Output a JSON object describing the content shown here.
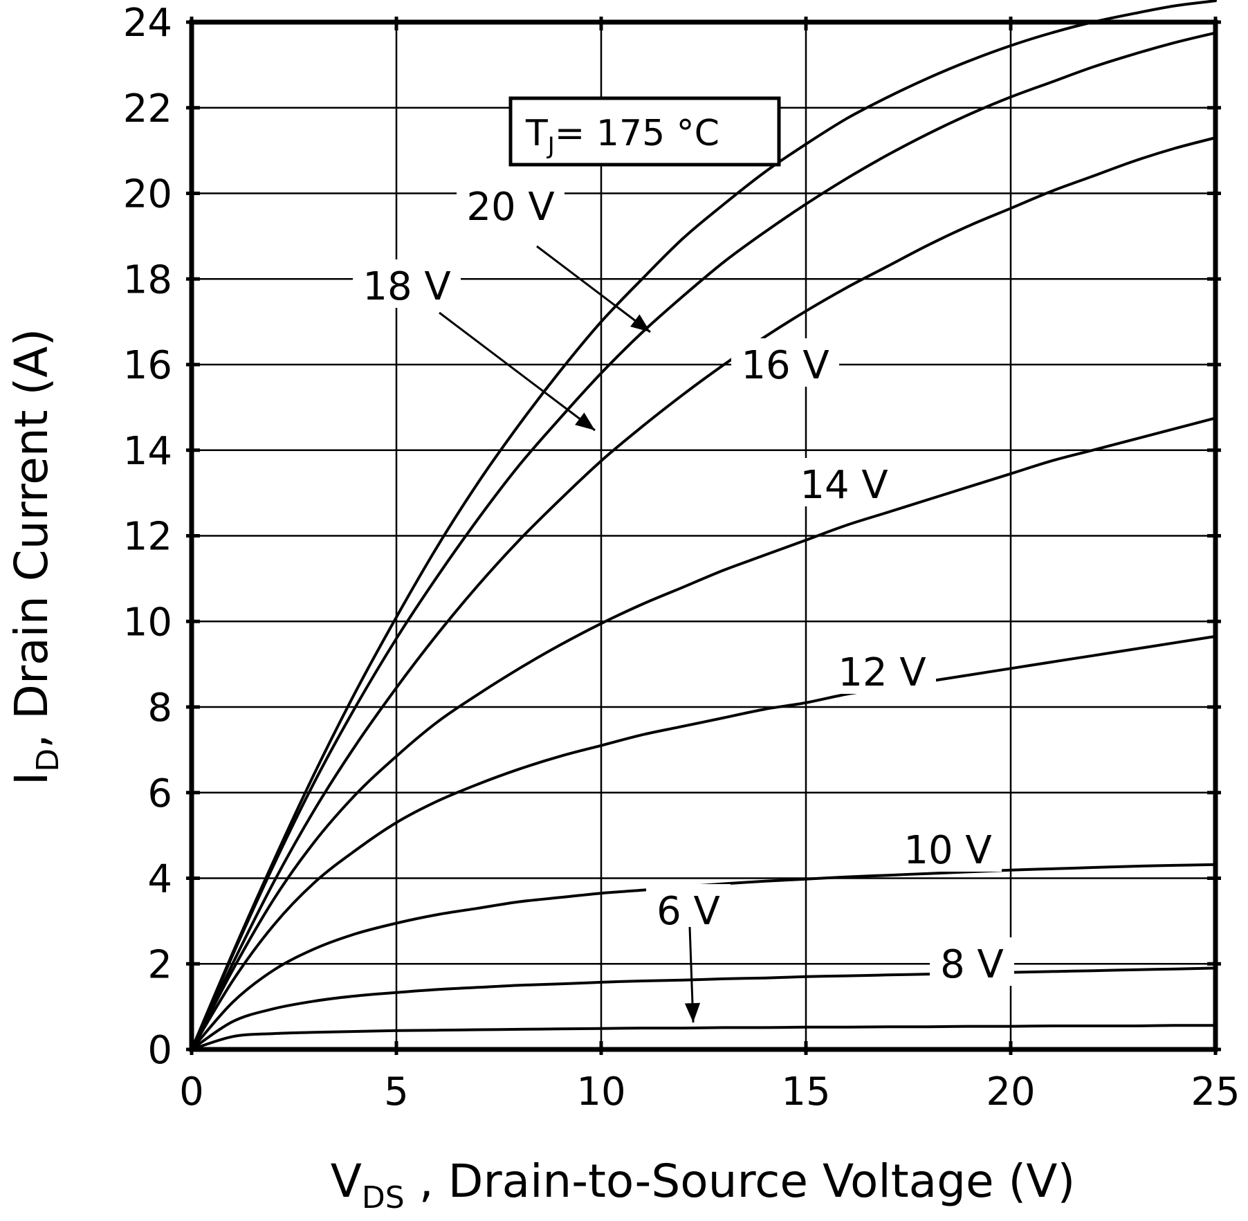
{
  "chart_data": {
    "type": "line",
    "title": "",
    "xlabel": {
      "main": "V",
      "sub": "DS",
      "rest": " , Drain-to-Source Voltage (V)"
    },
    "ylabel": {
      "main": "I",
      "sub": "D",
      "rest": ", Drain Current (A)"
    },
    "xlim": [
      0,
      25
    ],
    "ylim": [
      0,
      24
    ],
    "xticks": [
      0,
      5,
      10,
      15,
      20,
      25
    ],
    "yticks": [
      0,
      2,
      4,
      6,
      8,
      10,
      12,
      14,
      16,
      18,
      20,
      22,
      24
    ],
    "grid": true,
    "annotation": {
      "main": "T",
      "sub": "J",
      "rest": "= 175 °C"
    },
    "x": [
      0,
      1,
      2,
      3,
      4,
      5,
      6,
      7,
      8,
      9,
      10,
      11,
      12,
      13,
      14,
      15,
      16,
      17,
      18,
      19,
      20,
      21,
      22,
      23,
      24,
      25
    ],
    "series": [
      {
        "name": "20 V",
        "values": [
          0,
          2.25,
          4.4,
          6.45,
          8.35,
          10.1,
          11.75,
          13.25,
          14.6,
          15.85,
          17.0,
          18.0,
          18.95,
          19.75,
          20.5,
          21.15,
          21.75,
          22.25,
          22.7,
          23.1,
          23.45,
          23.75,
          24.0,
          24.2,
          24.38,
          24.5
        ]
      },
      {
        "name": "18 V",
        "values": [
          0,
          2.2,
          4.3,
          6.25,
          8.0,
          9.6,
          11.05,
          12.4,
          13.65,
          14.75,
          15.8,
          16.75,
          17.6,
          18.4,
          19.1,
          19.75,
          20.35,
          20.9,
          21.4,
          21.85,
          22.25,
          22.6,
          22.95,
          23.25,
          23.52,
          23.75
        ]
      },
      {
        "name": "16 V",
        "values": [
          0,
          2.0,
          3.9,
          5.6,
          7.1,
          8.45,
          9.7,
          10.85,
          11.9,
          12.85,
          13.75,
          14.55,
          15.3,
          16.0,
          16.65,
          17.25,
          17.8,
          18.3,
          18.8,
          19.25,
          19.65,
          20.05,
          20.4,
          20.75,
          21.05,
          21.3
        ]
      },
      {
        "name": "14 V",
        "values": [
          0,
          1.85,
          3.5,
          4.85,
          5.95,
          6.85,
          7.65,
          8.3,
          8.9,
          9.45,
          9.95,
          10.4,
          10.8,
          11.2,
          11.55,
          11.9,
          12.25,
          12.55,
          12.85,
          13.15,
          13.45,
          13.75,
          14.0,
          14.25,
          14.5,
          14.75
        ]
      },
      {
        "name": "12 V",
        "values": [
          0,
          1.6,
          2.9,
          3.9,
          4.65,
          5.3,
          5.8,
          6.2,
          6.55,
          6.85,
          7.1,
          7.35,
          7.55,
          7.75,
          7.95,
          8.1,
          8.3,
          8.45,
          8.6,
          8.75,
          8.9,
          9.05,
          9.2,
          9.35,
          9.5,
          9.65
        ]
      },
      {
        "name": "10 V",
        "values": [
          0,
          1.1,
          1.85,
          2.35,
          2.7,
          2.95,
          3.15,
          3.3,
          3.45,
          3.55,
          3.65,
          3.72,
          3.8,
          3.87,
          3.93,
          3.98,
          4.03,
          4.07,
          4.11,
          4.15,
          4.19,
          4.22,
          4.25,
          4.28,
          4.3,
          4.32
        ]
      },
      {
        "name": "8 V",
        "values": [
          0,
          0.65,
          0.95,
          1.13,
          1.25,
          1.33,
          1.4,
          1.45,
          1.5,
          1.53,
          1.57,
          1.6,
          1.62,
          1.65,
          1.67,
          1.7,
          1.72,
          1.74,
          1.76,
          1.78,
          1.8,
          1.82,
          1.84,
          1.86,
          1.88,
          1.9
        ]
      },
      {
        "name": "6 V",
        "values": [
          0,
          0.3,
          0.37,
          0.4,
          0.42,
          0.44,
          0.45,
          0.46,
          0.47,
          0.48,
          0.49,
          0.5,
          0.5,
          0.51,
          0.51,
          0.52,
          0.52,
          0.53,
          0.53,
          0.54,
          0.54,
          0.55,
          0.55,
          0.55,
          0.56,
          0.56
        ]
      }
    ]
  }
}
